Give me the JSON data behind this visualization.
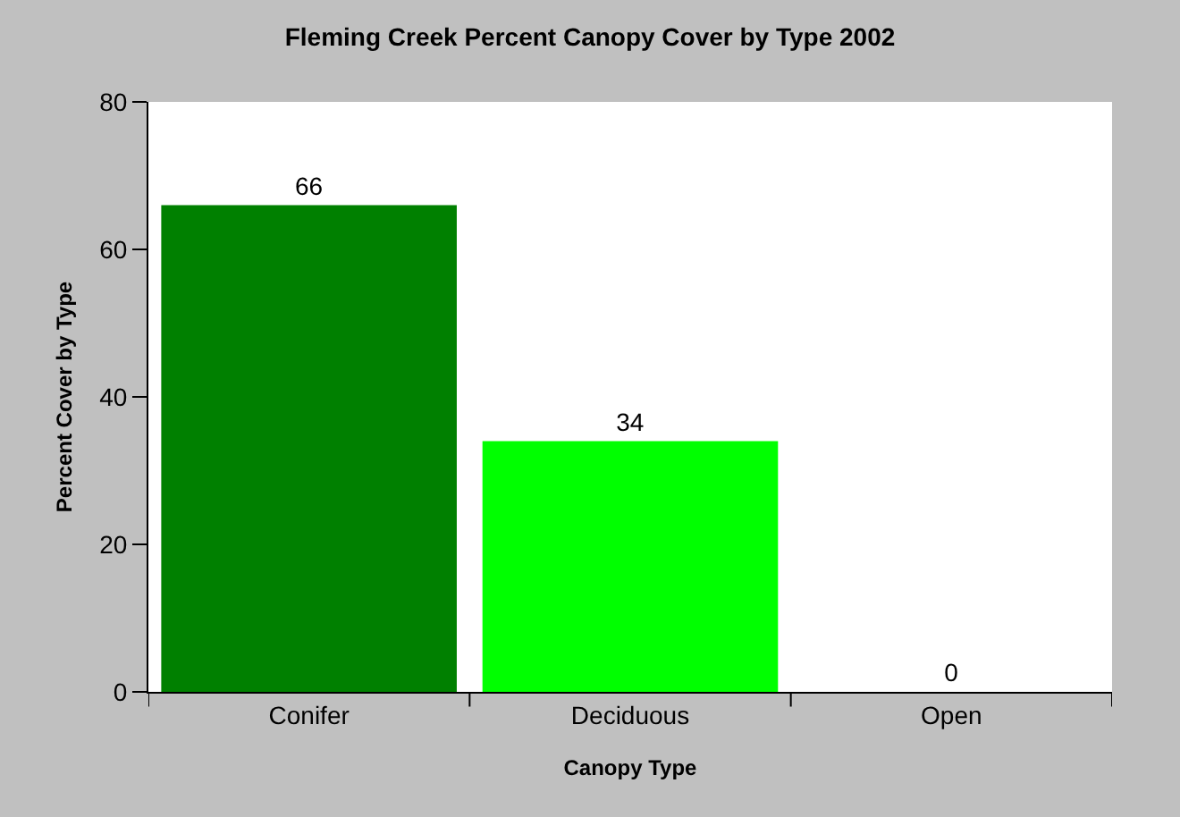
{
  "chart_data": {
    "type": "bar",
    "title": "Fleming Creek Percent Canopy Cover by Type 2002",
    "xlabel": "Canopy Type",
    "ylabel": "Percent Cover by Type",
    "categories": [
      "Conifer",
      "Deciduous",
      "Open"
    ],
    "values": [
      66,
      34,
      0
    ],
    "colors": [
      "#008000",
      "#00ff00",
      "#808080"
    ],
    "ylim": [
      0,
      80
    ],
    "yticks": [
      0,
      20,
      40,
      60,
      80
    ],
    "data_labels": true
  }
}
